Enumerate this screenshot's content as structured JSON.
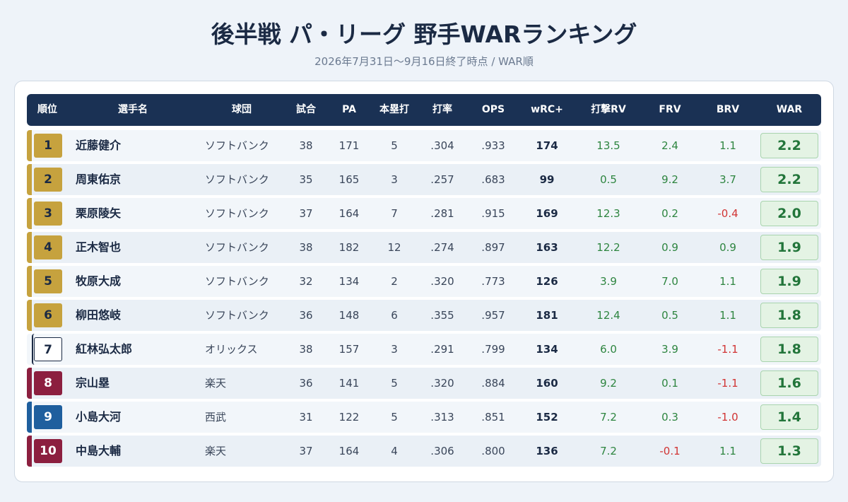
{
  "title": "後半戦 パ・リーグ 野手WARランキング",
  "subtitle": "2026年7月31日〜9月16日終了時点 / WAR順",
  "colors": {
    "gold": "#c6a23e",
    "orix_outline": "#1b2a44",
    "rakuten": "#8c1f3f",
    "seibu": "#1f5f9e",
    "header_bg": "#1a3154",
    "positive": "#2e8540",
    "negative": "#d13434"
  },
  "columns": [
    "順位",
    "選手名",
    "球団",
    "試合",
    "PA",
    "本塁打",
    "打率",
    "OPS",
    "wRC+",
    "打撃RV",
    "FRV",
    "BRV",
    "WAR"
  ],
  "rows": [
    {
      "rank": "1",
      "name": "近藤健介",
      "team": "ソフトバンク",
      "games": "38",
      "pa": "171",
      "hr": "5",
      "avg": ".304",
      "ops": ".933",
      "wrc": "174",
      "bat_rv": "13.5",
      "frv": "2.4",
      "brv": "1.1",
      "war": "2.2",
      "badge": "gold"
    },
    {
      "rank": "2",
      "name": "周東佑京",
      "team": "ソフトバンク",
      "games": "35",
      "pa": "165",
      "hr": "3",
      "avg": ".257",
      "ops": ".683",
      "wrc": "99",
      "bat_rv": "0.5",
      "frv": "9.2",
      "brv": "3.7",
      "war": "2.2",
      "badge": "gold"
    },
    {
      "rank": "3",
      "name": "栗原陵矢",
      "team": "ソフトバンク",
      "games": "37",
      "pa": "164",
      "hr": "7",
      "avg": ".281",
      "ops": ".915",
      "wrc": "169",
      "bat_rv": "12.3",
      "frv": "0.2",
      "brv": "-0.4",
      "war": "2.0",
      "badge": "gold"
    },
    {
      "rank": "4",
      "name": "正木智也",
      "team": "ソフトバンク",
      "games": "38",
      "pa": "182",
      "hr": "12",
      "avg": ".274",
      "ops": ".897",
      "wrc": "163",
      "bat_rv": "12.2",
      "frv": "0.9",
      "brv": "0.9",
      "war": "1.9",
      "badge": "gold"
    },
    {
      "rank": "5",
      "name": "牧原大成",
      "team": "ソフトバンク",
      "games": "32",
      "pa": "134",
      "hr": "2",
      "avg": ".320",
      "ops": ".773",
      "wrc": "126",
      "bat_rv": "3.9",
      "frv": "7.0",
      "brv": "1.1",
      "war": "1.9",
      "badge": "gold"
    },
    {
      "rank": "6",
      "name": "柳田悠岐",
      "team": "ソフトバンク",
      "games": "36",
      "pa": "148",
      "hr": "6",
      "avg": ".355",
      "ops": ".957",
      "wrc": "181",
      "bat_rv": "12.4",
      "frv": "0.5",
      "brv": "1.1",
      "war": "1.8",
      "badge": "gold"
    },
    {
      "rank": "7",
      "name": "紅林弘太郎",
      "team": "オリックス",
      "games": "38",
      "pa": "157",
      "hr": "3",
      "avg": ".291",
      "ops": ".799",
      "wrc": "134",
      "bat_rv": "6.0",
      "frv": "3.9",
      "brv": "-1.1",
      "war": "1.8",
      "badge": "outline"
    },
    {
      "rank": "8",
      "name": "宗山塁",
      "team": "楽天",
      "games": "36",
      "pa": "141",
      "hr": "5",
      "avg": ".320",
      "ops": ".884",
      "wrc": "160",
      "bat_rv": "9.2",
      "frv": "0.1",
      "brv": "-1.1",
      "war": "1.6",
      "badge": "rakuten"
    },
    {
      "rank": "9",
      "name": "小島大河",
      "team": "西武",
      "games": "31",
      "pa": "122",
      "hr": "5",
      "avg": ".313",
      "ops": ".851",
      "wrc": "152",
      "bat_rv": "7.2",
      "frv": "0.3",
      "brv": "-1.0",
      "war": "1.4",
      "badge": "seibu"
    },
    {
      "rank": "10",
      "name": "中島大輔",
      "team": "楽天",
      "games": "37",
      "pa": "164",
      "hr": "4",
      "avg": ".306",
      "ops": ".800",
      "wrc": "136",
      "bat_rv": "7.2",
      "frv": "-0.1",
      "brv": "1.1",
      "war": "1.3",
      "badge": "rakuten"
    }
  ]
}
